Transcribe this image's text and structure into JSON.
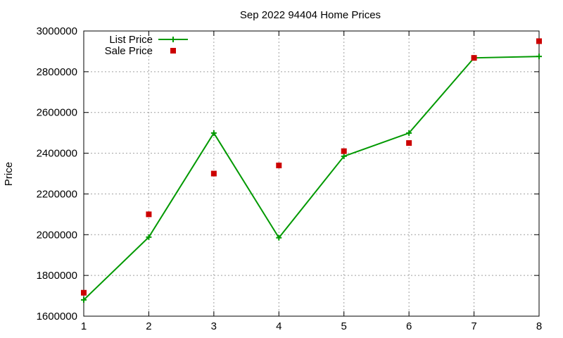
{
  "chart_data": {
    "type": "line",
    "title": "Sep 2022 94404 Home Prices",
    "xlabel": "",
    "ylabel": "Price",
    "x": [
      1,
      2,
      3,
      4,
      5,
      6,
      7,
      8
    ],
    "xlim": [
      1,
      8
    ],
    "ylim": [
      1600000,
      3000000
    ],
    "xticks": [
      "1",
      "2",
      "3",
      "4",
      "5",
      "6",
      "7",
      "8"
    ],
    "yticks": [
      "1600000",
      "1800000",
      "2000000",
      "2200000",
      "2400000",
      "2600000",
      "2800000",
      "3000000"
    ],
    "grid": true,
    "legend_position": "top-left",
    "series": [
      {
        "name": "List Price",
        "style": "line-with-plus-markers",
        "color": "#009900",
        "values": [
          1680000,
          1988000,
          2499000,
          1985000,
          2385000,
          2499000,
          2868000,
          2875000
        ]
      },
      {
        "name": "Sale Price",
        "style": "square-markers",
        "color": "#cc0000",
        "values": [
          1715000,
          2100000,
          2300000,
          2340000,
          2410000,
          2450000,
          2868000,
          2950000
        ]
      }
    ]
  }
}
